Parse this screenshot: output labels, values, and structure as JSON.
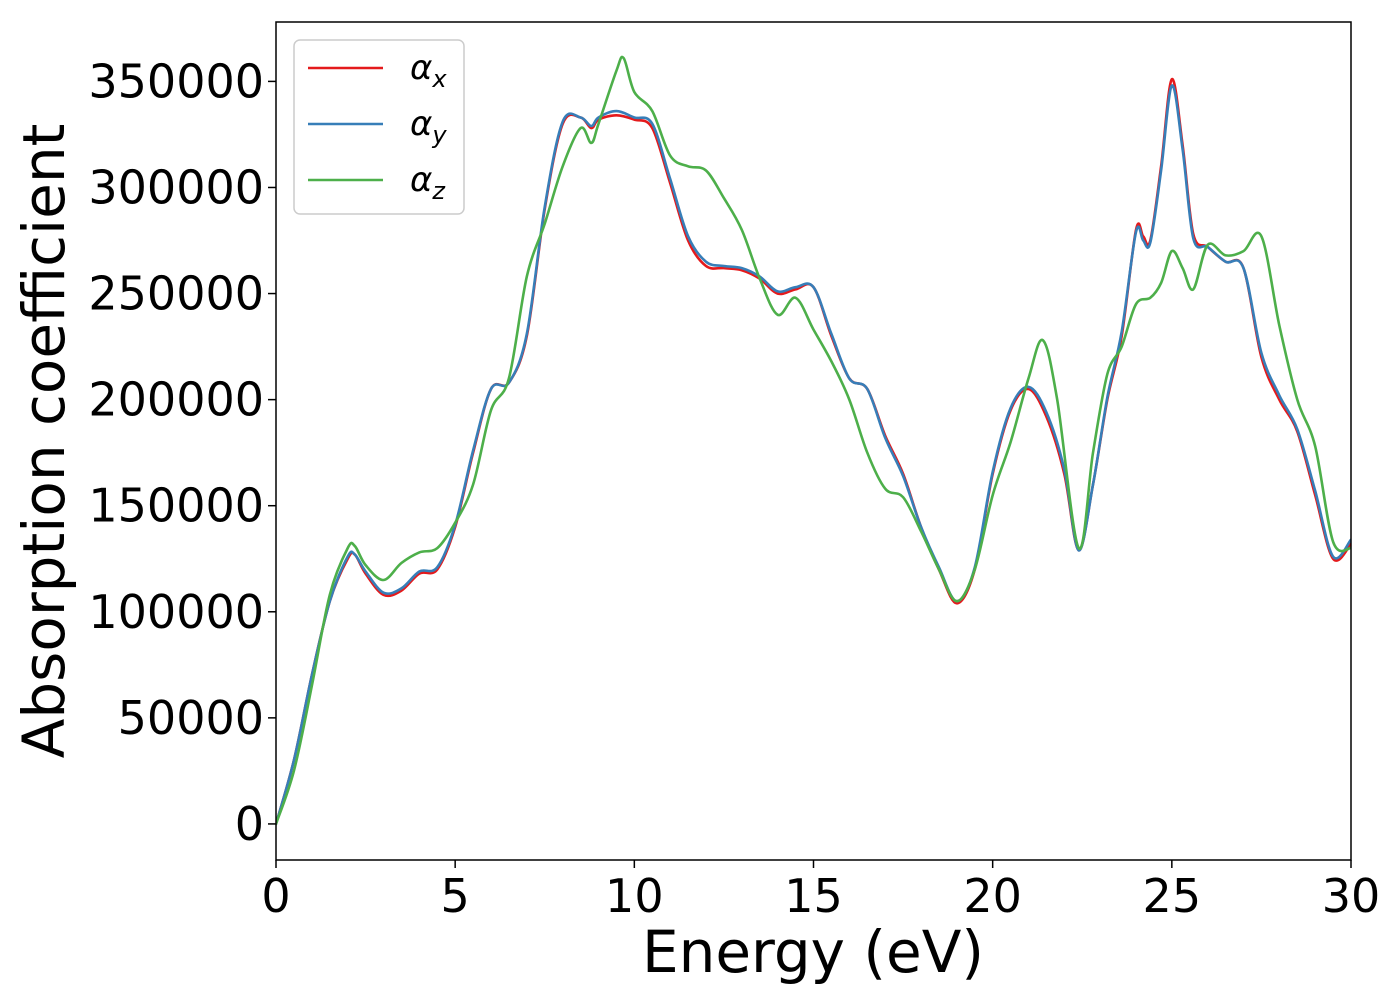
{
  "chart_data": {
    "type": "line",
    "title": "",
    "xlabel": "Energy (eV)",
    "ylabel": "Absorption coefficient",
    "xlim": [
      0,
      30
    ],
    "ylim": [
      -17000,
      378000
    ],
    "xticks": [
      0,
      5,
      10,
      15,
      20,
      25,
      30
    ],
    "yticks": [
      0,
      50000,
      100000,
      150000,
      200000,
      250000,
      300000,
      350000
    ],
    "grid": false,
    "legend_position": "top-left",
    "series": [
      {
        "name": "α",
        "subscript": "x",
        "color": "#e41a1c",
        "x": [
          0,
          0.5,
          1,
          1.5,
          2,
          2.2,
          2.5,
          3,
          3.5,
          4,
          4.5,
          5,
          5.5,
          6,
          6.5,
          7,
          7.5,
          8,
          8.5,
          8.8,
          9,
          9.5,
          10,
          10.5,
          11,
          11.5,
          12,
          12.5,
          13,
          13.5,
          14,
          14.5,
          15,
          15.5,
          16,
          16.5,
          17,
          17.5,
          18,
          18.5,
          19,
          19.5,
          20,
          20.5,
          21,
          21.5,
          22,
          22.4,
          22.8,
          23.2,
          23.6,
          24,
          24.2,
          24.4,
          24.7,
          25,
          25.3,
          25.6,
          26,
          26.5,
          27,
          27.5,
          28,
          28.5,
          29,
          29.5,
          30
        ],
        "y": [
          0,
          30000,
          70000,
          105000,
          125000,
          127000,
          118000,
          108000,
          110000,
          118000,
          120000,
          140000,
          175000,
          205000,
          208000,
          230000,
          290000,
          330000,
          333000,
          328000,
          332000,
          334000,
          332000,
          328000,
          302000,
          275000,
          263000,
          262000,
          261000,
          257000,
          250000,
          252000,
          253000,
          230000,
          210000,
          205000,
          183000,
          165000,
          140000,
          120000,
          104000,
          120000,
          165000,
          195000,
          205000,
          192000,
          165000,
          129000,
          160000,
          200000,
          230000,
          280000,
          277000,
          275000,
          310000,
          351000,
          320000,
          278000,
          272000,
          265000,
          262000,
          220000,
          200000,
          185000,
          155000,
          125000,
          132000
        ]
      },
      {
        "name": "α",
        "subscript": "y",
        "color": "#377eb8",
        "x": [
          0,
          0.5,
          1,
          1.5,
          2,
          2.2,
          2.5,
          3,
          3.5,
          4,
          4.5,
          5,
          5.5,
          6,
          6.5,
          7,
          7.5,
          8,
          8.5,
          8.8,
          9,
          9.5,
          10,
          10.5,
          11,
          11.5,
          12,
          12.5,
          13,
          13.5,
          14,
          14.5,
          15,
          15.5,
          16,
          16.5,
          17,
          17.5,
          18,
          18.5,
          19,
          19.5,
          20,
          20.5,
          21,
          21.5,
          22,
          22.4,
          22.8,
          23.2,
          23.6,
          24,
          24.2,
          24.4,
          24.7,
          25,
          25.3,
          25.6,
          26,
          26.5,
          27,
          27.5,
          28,
          28.5,
          29,
          29.5,
          30
        ],
        "y": [
          0,
          30000,
          70000,
          105000,
          126000,
          127000,
          119000,
          109000,
          111000,
          119000,
          121000,
          141000,
          176000,
          205000,
          208000,
          231000,
          291000,
          331000,
          333000,
          329000,
          333000,
          336000,
          333000,
          330000,
          304000,
          277000,
          265000,
          263000,
          262000,
          258000,
          251000,
          253000,
          253000,
          231000,
          210000,
          205000,
          182000,
          164000,
          140000,
          121000,
          105000,
          121000,
          166000,
          196000,
          206000,
          194000,
          167000,
          129000,
          160000,
          201000,
          232000,
          279000,
          275000,
          274000,
          308000,
          348000,
          318000,
          276000,
          272000,
          265000,
          262000,
          222000,
          202000,
          186000,
          157000,
          126000,
          134000
        ]
      },
      {
        "name": "α",
        "subscript": "z",
        "color": "#4daf4a",
        "x": [
          0,
          0.5,
          1,
          1.5,
          2,
          2.2,
          2.5,
          3,
          3.5,
          4,
          4.5,
          5,
          5.5,
          6,
          6.5,
          7,
          7.5,
          8,
          8.5,
          8.8,
          9,
          9.5,
          9.7,
          10,
          10.5,
          11,
          11.5,
          12,
          12.5,
          13,
          13.5,
          14,
          14.5,
          15,
          15.5,
          16,
          16.5,
          17,
          17.5,
          18,
          18.5,
          19,
          19.5,
          20,
          20.5,
          21,
          21.4,
          21.8,
          22.4,
          22.8,
          23.2,
          23.6,
          24,
          24.4,
          24.7,
          25,
          25.3,
          25.6,
          26,
          26.5,
          27,
          27.5,
          28,
          28.5,
          29,
          29.5,
          30
        ],
        "y": [
          0,
          25000,
          65000,
          108000,
          130000,
          131000,
          122000,
          115000,
          123000,
          128000,
          130000,
          142000,
          160000,
          195000,
          210000,
          258000,
          283000,
          310000,
          328000,
          321000,
          330000,
          355000,
          361000,
          345000,
          336000,
          315000,
          310000,
          308000,
          295000,
          280000,
          257000,
          240000,
          248000,
          233000,
          218000,
          200000,
          175000,
          158000,
          154000,
          138000,
          120000,
          105000,
          120000,
          155000,
          180000,
          210000,
          228000,
          200000,
          130000,
          175000,
          212000,
          225000,
          245000,
          248000,
          255000,
          270000,
          262000,
          252000,
          273000,
          268000,
          270000,
          277000,
          235000,
          200000,
          178000,
          133000,
          130000
        ]
      }
    ]
  }
}
